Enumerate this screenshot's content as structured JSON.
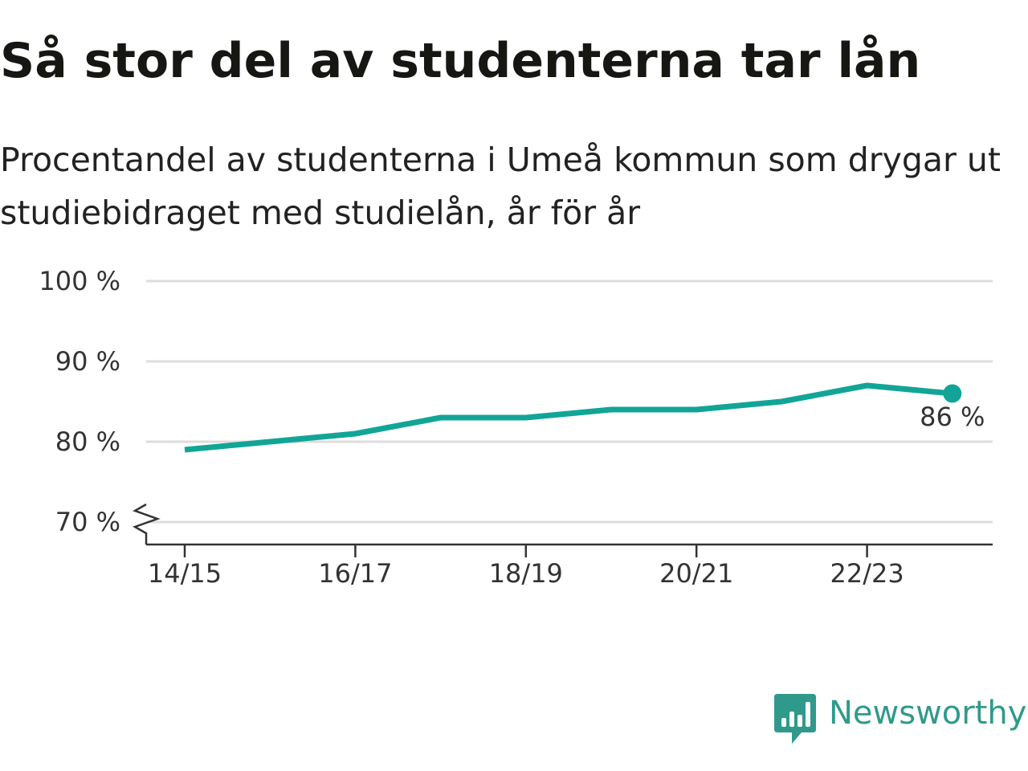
{
  "title": "Så stor del av studenterna tar lån",
  "subtitle": "Procentandel av studenterna i Umeå kommun som drygar ut studiebidraget med studielån, år för år",
  "brand": {
    "name": "Newsworthy",
    "icon": "newsworthy-bar-chart-logo",
    "color": "#2f9a8b"
  },
  "chart_data": {
    "type": "line",
    "title": "Så stor del av studenterna tar lån",
    "subtitle": "Procentandel av studenterna i Umeå kommun som drygar ut studiebidraget med studielån, år för år",
    "xlabel": "",
    "ylabel": "",
    "x": [
      "14/15",
      "15/16",
      "16/17",
      "17/18",
      "18/19",
      "19/20",
      "20/21",
      "21/22",
      "22/23",
      "23/24"
    ],
    "x_tick_labels": [
      "14/15",
      "16/17",
      "18/19",
      "20/21",
      "22/23"
    ],
    "series": [
      {
        "values": [
          79,
          80,
          81,
          83,
          83,
          84,
          84,
          85,
          87,
          86
        ],
        "color": "#12a597"
      }
    ],
    "ylim": [
      70,
      100
    ],
    "y_ticks": [
      70,
      80,
      90,
      100
    ],
    "y_tick_labels": [
      "70 %",
      "80 %",
      "90 %",
      "100 %"
    ],
    "y_axis_break": true,
    "grid": true,
    "gridline_color": "#dddddd",
    "end_label": "86 %"
  }
}
